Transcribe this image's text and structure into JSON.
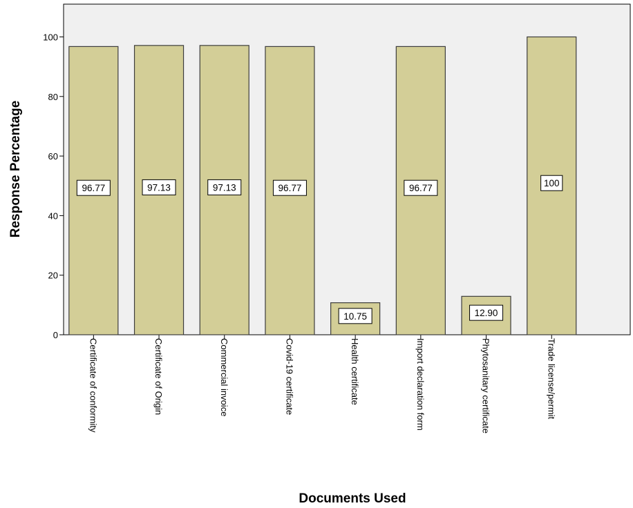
{
  "chart_data": {
    "type": "bar",
    "xlabel": "Documents Used",
    "ylabel": "Response Percentage",
    "categories": [
      "Certificate of conformity",
      "Certificate of Origin",
      "Commercial invoice",
      "Covid-19 certificate",
      "Health certificate",
      "Import declaration form",
      "Phytosanitary certificate",
      "Trade license/permit"
    ],
    "values": [
      96.77,
      97.13,
      97.13,
      96.77,
      10.75,
      96.77,
      12.9,
      100
    ],
    "data_labels": [
      "96.77",
      "97.13",
      "97.13",
      "96.77",
      "10.75",
      "96.77",
      "12.90",
      "100"
    ],
    "yticks": [
      "0",
      "20",
      "40",
      "60",
      "80",
      "100"
    ],
    "ylim": [
      0,
      111
    ],
    "grid": false,
    "colors": {
      "plot_background": "#F0F0F0",
      "bar_fill": "#D3CE97",
      "bar_stroke": "#3C3C3C",
      "label_box_fill": "#FFFFFF"
    }
  }
}
